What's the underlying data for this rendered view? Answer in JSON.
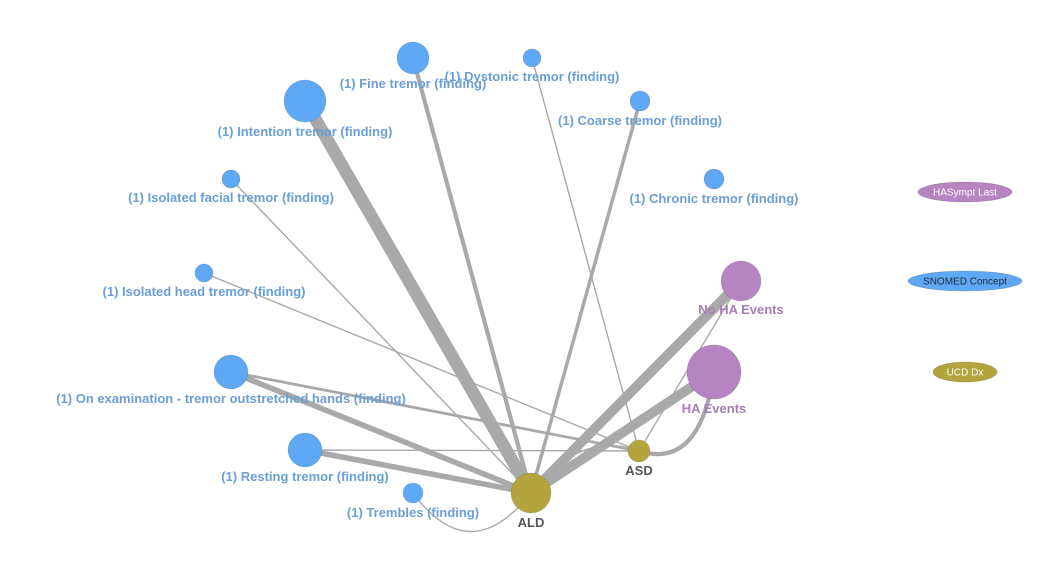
{
  "colors": {
    "snomed": "#5fa8f5",
    "snomed_label": "#6a9fd6",
    "ha": "#b584c1",
    "ha_label": "#a67db8",
    "ucd": "#b3a43e",
    "ucd_label": "#555555",
    "edge": "#a9a9a9"
  },
  "nodes": {
    "fine": {
      "label": "(1) Fine tremor (finding)",
      "group": "snomed"
    },
    "dystonic": {
      "label": "(1) Dystonic tremor (finding)",
      "group": "snomed"
    },
    "intention": {
      "label": "(1) Intention tremor (finding)",
      "group": "snomed"
    },
    "coarse": {
      "label": "(1) Coarse tremor (finding)",
      "group": "snomed"
    },
    "facial": {
      "label": "(1) Isolated facial tremor (finding)",
      "group": "snomed"
    },
    "chronic": {
      "label": "(1) Chronic tremor (finding)",
      "group": "snomed"
    },
    "head": {
      "label": "(1) Isolated head tremor (finding)",
      "group": "snomed"
    },
    "outstretched": {
      "label": "(1) On examination - tremor outstretched hands (finding)",
      "group": "snomed"
    },
    "resting": {
      "label": "(1) Resting tremor (finding)",
      "group": "snomed"
    },
    "trembles": {
      "label": "(1) Trembles (finding)",
      "group": "snomed"
    },
    "noha": {
      "label": "No HA Events",
      "group": "ha"
    },
    "ha": {
      "label": "HA Events",
      "group": "ha"
    },
    "asd": {
      "label": "ASD",
      "group": "ucd"
    },
    "ald": {
      "label": "ALD",
      "group": "ucd"
    }
  },
  "edges": [
    {
      "from": "intention",
      "to": "ald",
      "weight": 9
    },
    {
      "from": "fine",
      "to": "ald",
      "weight": 3
    },
    {
      "from": "dystonic",
      "to": "asd",
      "weight": 1
    },
    {
      "from": "coarse",
      "to": "ald",
      "weight": 2.5
    },
    {
      "from": "facial",
      "to": "ald",
      "weight": 1
    },
    {
      "from": "head",
      "to": "asd",
      "weight": 1
    },
    {
      "from": "outstretched",
      "to": "ald",
      "weight": 4
    },
    {
      "from": "outstretched",
      "to": "asd",
      "weight": 2
    },
    {
      "from": "resting",
      "to": "ald",
      "weight": 4
    },
    {
      "from": "resting",
      "to": "asd",
      "weight": 1
    },
    {
      "from": "trembles",
      "to": "ald",
      "weight": 1
    },
    {
      "from": "ald",
      "to": "noha",
      "weight": 7
    },
    {
      "from": "ald",
      "to": "ha",
      "weight": 7
    },
    {
      "from": "asd",
      "to": "noha",
      "weight": 1
    },
    {
      "from": "asd",
      "to": "ha",
      "weight": 3
    },
    {
      "from": "ald",
      "to": "asd",
      "weight": 1
    }
  ],
  "legend": [
    {
      "label": "HASympt Last",
      "group": "ha"
    },
    {
      "label": "SNOMED Concept",
      "group": "snomed"
    },
    {
      "label": "UCD Dx",
      "group": "ucd"
    }
  ]
}
